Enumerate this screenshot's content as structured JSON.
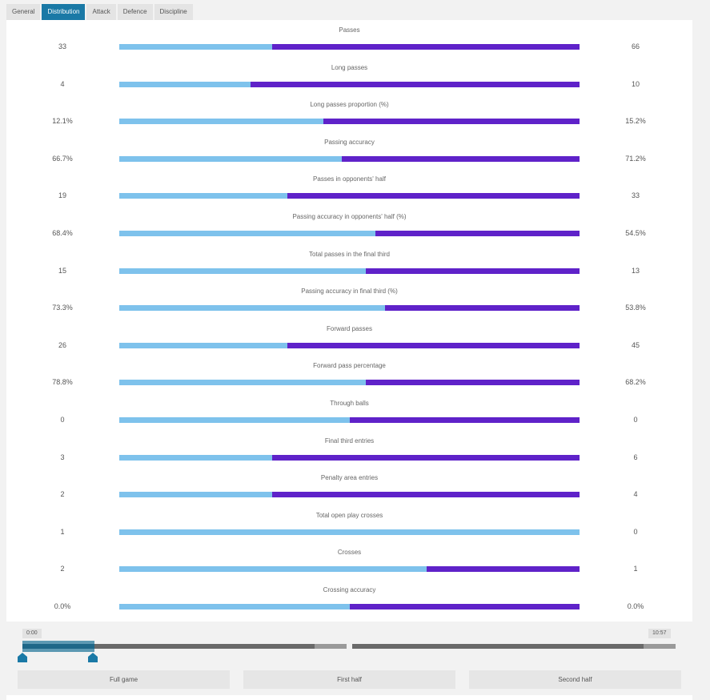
{
  "tabs": [
    {
      "label": "General",
      "active": false
    },
    {
      "label": "Distribution",
      "active": true
    },
    {
      "label": "Attack",
      "active": false
    },
    {
      "label": "Defence",
      "active": false
    },
    {
      "label": "Discipline",
      "active": false
    }
  ],
  "colors": {
    "home": "#7ec2ec",
    "away": "#5f22c9",
    "active_tab": "#1a79a6"
  },
  "stats": [
    {
      "label": "Passes",
      "left": "33",
      "right": "66",
      "home_share": 0.333
    },
    {
      "label": "Long passes",
      "left": "4",
      "right": "10",
      "home_share": 0.286
    },
    {
      "label": "Long passes proportion (%)",
      "left": "12.1%",
      "right": "15.2%",
      "home_share": 0.443
    },
    {
      "label": "Passing accuracy",
      "left": "66.7%",
      "right": "71.2%",
      "home_share": 0.484
    },
    {
      "label": "Passes in opponents' half",
      "left": "19",
      "right": "33",
      "home_share": 0.365
    },
    {
      "label": "Passing accuracy in opponents' half (%)",
      "left": "68.4%",
      "right": "54.5%",
      "home_share": 0.557
    },
    {
      "label": "Total passes in the final third",
      "left": "15",
      "right": "13",
      "home_share": 0.536
    },
    {
      "label": "Passing accuracy in final third (%)",
      "left": "73.3%",
      "right": "53.8%",
      "home_share": 0.577
    },
    {
      "label": "Forward passes",
      "left": "26",
      "right": "45",
      "home_share": 0.366
    },
    {
      "label": "Forward pass percentage",
      "left": "78.8%",
      "right": "68.2%",
      "home_share": 0.536
    },
    {
      "label": "Through balls",
      "left": "0",
      "right": "0",
      "home_share": 0.5
    },
    {
      "label": "Final third entries",
      "left": "3",
      "right": "6",
      "home_share": 0.333
    },
    {
      "label": "Penalty area entries",
      "left": "2",
      "right": "4",
      "home_share": 0.333
    },
    {
      "label": "Total open play crosses",
      "left": "1",
      "right": "0",
      "home_share": 1.0
    },
    {
      "label": "Crosses",
      "left": "2",
      "right": "1",
      "home_share": 0.667
    },
    {
      "label": "Crossing accuracy",
      "left": "0.0%",
      "right": "0.0%",
      "home_share": 0.5
    }
  ],
  "timeline": {
    "start_label": "0:00",
    "end_label": "10:57"
  },
  "periods": {
    "full_game": "Full game",
    "first_half": "First half",
    "second_half": "Second half"
  }
}
